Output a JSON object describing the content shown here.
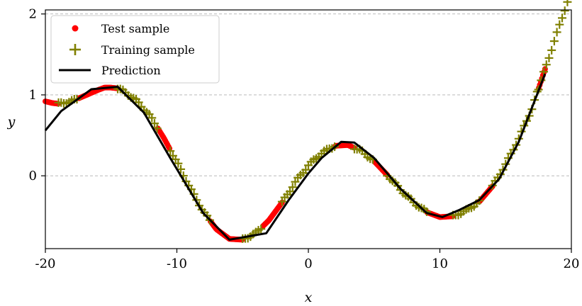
{
  "chart_data": {
    "type": "scatter",
    "xlabel": "x",
    "ylabel": "y",
    "xlim": [
      -20,
      20
    ],
    "ylim": [
      -0.9,
      2.05
    ],
    "x_ticks": [
      -20,
      -10,
      0,
      10,
      20
    ],
    "x_tick_labels": [
      "-20",
      "-10",
      "0",
      "10",
      "20"
    ],
    "y_ticks": [
      0,
      1,
      2
    ],
    "y_tick_labels": [
      "0",
      "1",
      "2"
    ],
    "grid": "horizontal dashed at y ticks",
    "legend_position": "upper-left",
    "series": [
      {
        "name": "Test sample",
        "kind": "scatter",
        "marker": "dot",
        "color": "#ff0000",
        "curve_points": [
          [
            -20,
            0.92
          ],
          [
            -19.5,
            0.9
          ],
          [
            -19,
            0.89
          ],
          [
            -18,
            0.92
          ],
          [
            -17,
            0.99
          ],
          [
            -16,
            1.06
          ],
          [
            -15.5,
            1.09
          ],
          [
            -15,
            1.09
          ],
          [
            -14.5,
            1.08
          ],
          [
            -14,
            1.04
          ],
          [
            -13,
            0.92
          ],
          [
            -12,
            0.73
          ],
          [
            -11,
            0.47
          ],
          [
            -10,
            0.17
          ],
          [
            -9,
            -0.15
          ],
          [
            -8,
            -0.44
          ],
          [
            -7,
            -0.66
          ],
          [
            -6,
            -0.78
          ],
          [
            -5,
            -0.79
          ],
          [
            -4,
            -0.71
          ],
          [
            -3,
            -0.55
          ],
          [
            -2,
            -0.33
          ],
          [
            -1,
            -0.08
          ],
          [
            0,
            0.13
          ],
          [
            1,
            0.28
          ],
          [
            2,
            0.37
          ],
          [
            3,
            0.38
          ],
          [
            4,
            0.31
          ],
          [
            5,
            0.18
          ],
          [
            6,
            0.01
          ],
          [
            7,
            -0.17
          ],
          [
            8,
            -0.33
          ],
          [
            9,
            -0.45
          ],
          [
            10,
            -0.51
          ],
          [
            11,
            -0.5
          ],
          [
            12,
            -0.43
          ],
          [
            13,
            -0.32
          ],
          [
            14,
            -0.13
          ],
          [
            15,
            0.14
          ],
          [
            16,
            0.46
          ],
          [
            17,
            0.83
          ],
          [
            18,
            1.32
          ]
        ],
        "gaps": [
          [
            -19,
            -17.5
          ],
          [
            -14.5,
            -11.5
          ],
          [
            -10.5,
            -7.5
          ],
          [
            -5,
            -3.5
          ],
          [
            -2,
            2
          ],
          [
            3.5,
            5
          ],
          [
            6,
            9
          ],
          [
            11,
            13
          ],
          [
            14,
            17.5
          ]
        ]
      },
      {
        "name": "Training sample",
        "kind": "scatter",
        "marker": "plus",
        "color": "#808000",
        "ranges": [
          [
            -19,
            -17.5
          ],
          [
            -14.5,
            -11.5
          ],
          [
            -10.5,
            -7.5
          ],
          [
            -5,
            -3.5
          ],
          [
            -2,
            2
          ],
          [
            3.5,
            5
          ],
          [
            6,
            9
          ],
          [
            11,
            13
          ],
          [
            14,
            17.5
          ],
          [
            17.5,
            20
          ]
        ]
      },
      {
        "name": "Prediction",
        "kind": "line",
        "color": "#000000",
        "x": [
          -20,
          -18.8,
          -16.5,
          -14.5,
          -12.5,
          -10.5,
          -8,
          -6,
          -3.2,
          -1.5,
          0,
          1,
          2.5,
          3.5,
          5,
          7,
          9,
          10.2,
          11.5,
          13,
          14.5,
          16,
          18
        ],
        "y": [
          0.56,
          0.8,
          1.07,
          1.1,
          0.78,
          0.22,
          -0.46,
          -0.79,
          -0.71,
          -0.3,
          0.03,
          0.22,
          0.42,
          0.41,
          0.22,
          -0.16,
          -0.46,
          -0.51,
          -0.42,
          -0.3,
          -0.04,
          0.42,
          1.26
        ]
      }
    ]
  }
}
